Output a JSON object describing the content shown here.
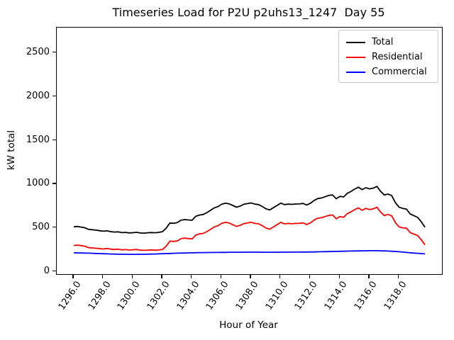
{
  "title": "Timeseries Load for P2U p2uhs13_1247  Day 55",
  "axes": {
    "xlabel": "Hour of Year",
    "ylabel": "kW total",
    "xlim": [
      1294.85,
      1320.9
    ],
    "ylim": [
      -30,
      2790
    ],
    "x_ticks": [
      {
        "label": "1296.0",
        "value": 1296
      },
      {
        "label": "1298.0",
        "value": 1298
      },
      {
        "label": "1300.0",
        "value": 1300
      },
      {
        "label": "1302.0",
        "value": 1302
      },
      {
        "label": "1304.0",
        "value": 1304
      },
      {
        "label": "1306.0",
        "value": 1306
      },
      {
        "label": "1308.0",
        "value": 1308
      },
      {
        "label": "1310.0",
        "value": 1310
      },
      {
        "label": "1312.0",
        "value": 1312
      },
      {
        "label": "1314.0",
        "value": 1314
      },
      {
        "label": "1316.0",
        "value": 1316
      },
      {
        "label": "1318.0",
        "value": 1318
      }
    ],
    "y_ticks": [
      {
        "label": "0",
        "value": 0
      },
      {
        "label": "500",
        "value": 500
      },
      {
        "label": "1000",
        "value": 1000
      },
      {
        "label": "1500",
        "value": 1500
      },
      {
        "label": "2000",
        "value": 2000
      },
      {
        "label": "2500",
        "value": 2500
      }
    ]
  },
  "legend": {
    "position": "upper right",
    "entries": [
      {
        "label": "Total",
        "color": "#000000"
      },
      {
        "label": "Residential",
        "color": "#ff0000"
      },
      {
        "label": "Commercial",
        "color": "#0000ff"
      }
    ]
  },
  "chart_data": {
    "type": "line",
    "title": "Timeseries Load for P2U p2uhs13_1247  Day 55",
    "xlabel": "Hour of Year",
    "ylabel": "kW total",
    "xlim": [
      1294.85,
      1320.9
    ],
    "ylim": [
      -30,
      2790
    ],
    "grid": false,
    "legend_position": "upper right",
    "x": [
      1296.0,
      1296.25,
      1296.5,
      1296.75,
      1297.0,
      1297.25,
      1297.5,
      1297.75,
      1298.0,
      1298.25,
      1298.5,
      1298.75,
      1299.0,
      1299.25,
      1299.5,
      1299.75,
      1300.0,
      1300.25,
      1300.5,
      1300.75,
      1301.0,
      1301.25,
      1301.5,
      1301.75,
      1302.0,
      1302.25,
      1302.5,
      1302.75,
      1303.0,
      1303.25,
      1303.5,
      1303.75,
      1304.0,
      1304.25,
      1304.5,
      1304.75,
      1305.0,
      1305.25,
      1305.5,
      1305.75,
      1306.0,
      1306.25,
      1306.5,
      1306.75,
      1307.0,
      1307.25,
      1307.5,
      1307.75,
      1308.0,
      1308.25,
      1308.5,
      1308.75,
      1309.0,
      1309.25,
      1309.5,
      1309.75,
      1310.0,
      1310.25,
      1310.5,
      1310.75,
      1311.0,
      1311.25,
      1311.5,
      1311.75,
      1312.0,
      1312.25,
      1312.5,
      1312.75,
      1313.0,
      1313.25,
      1313.5,
      1313.75,
      1314.0,
      1314.25,
      1314.5,
      1314.75,
      1315.0,
      1315.25,
      1315.5,
      1315.75,
      1316.0,
      1316.25,
      1316.5,
      1316.75,
      1317.0,
      1317.25,
      1317.5,
      1317.75,
      1318.0,
      1318.25,
      1318.5,
      1318.75,
      1319.0,
      1319.25,
      1319.5,
      1319.75
    ],
    "series": [
      {
        "name": "Total",
        "color": "#000000",
        "values": [
          511,
          515,
          508,
          501,
          482,
          478,
          473,
          467,
          461,
          465,
          456,
          451,
          454,
          445,
          447,
          442,
          444,
          448,
          441,
          439,
          443,
          446,
          443,
          448,
          455,
          495,
          555,
          552,
          560,
          587,
          594,
          590,
          586,
          631,
          646,
          652,
          673,
          700,
          728,
          742,
          769,
          781,
          775,
          756,
          736,
          748,
          769,
          777,
          784,
          771,
          766,
          744,
          717,
          704,
          730,
          756,
          783,
          766,
          771,
          768,
          772,
          773,
          779,
          761,
          780,
          812,
          835,
          841,
          856,
          870,
          876,
          833,
          860,
          853,
          895,
          916,
          943,
          964,
          937,
          959,
          946,
          954,
          973,
          917,
          876,
          886,
          869,
          789,
          736,
          722,
          713,
          659,
          639,
          620,
          570,
          507
        ]
      },
      {
        "name": "Residential",
        "color": "#ff0000",
        "values": [
          297,
          302,
          296,
          290,
          272,
          270,
          266,
          262,
          258,
          263,
          256,
          252,
          256,
          248,
          250,
          246,
          248,
          252,
          244,
          242,
          245,
          247,
          243,
          246,
          252,
          290,
          348,
          344,
          350,
          376,
          382,
          377,
          372,
          416,
          430,
          436,
          456,
          483,
          510,
          524,
          550,
          562,
          555,
          536,
          516,
          528,
          548,
          556,
          563,
          550,
          545,
          524,
          497,
          484,
          510,
          536,
          562,
          545,
          550,
          546,
          550,
          551,
          556,
          538,
          556,
          588,
          610,
          615,
          629,
          642,
          647,
          603,
          629,
          621,
          662,
          682,
          708,
          728,
          700,
          722,
          708,
          716,
          735,
          680,
          640,
          652,
          637,
          560,
          510,
          500,
          495,
          445,
          428,
          412,
          365,
          305
        ]
      },
      {
        "name": "Commercial",
        "color": "#0000ff",
        "values": [
          214,
          213,
          212,
          211,
          210,
          208,
          207,
          205,
          203,
          202,
          200,
          199,
          198,
          197,
          197,
          196,
          196,
          196,
          197,
          197,
          198,
          199,
          200,
          202,
          203,
          205,
          207,
          208,
          210,
          211,
          212,
          213,
          214,
          215,
          216,
          216,
          217,
          217,
          218,
          218,
          219,
          219,
          220,
          220,
          220,
          220,
          221,
          221,
          221,
          221,
          221,
          220,
          220,
          220,
          220,
          220,
          221,
          221,
          221,
          222,
          222,
          222,
          223,
          223,
          224,
          224,
          225,
          226,
          227,
          228,
          229,
          230,
          231,
          232,
          233,
          234,
          235,
          236,
          237,
          237,
          238,
          238,
          238,
          237,
          236,
          234,
          232,
          229,
          226,
          222,
          218,
          214,
          211,
          208,
          205,
          202
        ]
      }
    ]
  }
}
